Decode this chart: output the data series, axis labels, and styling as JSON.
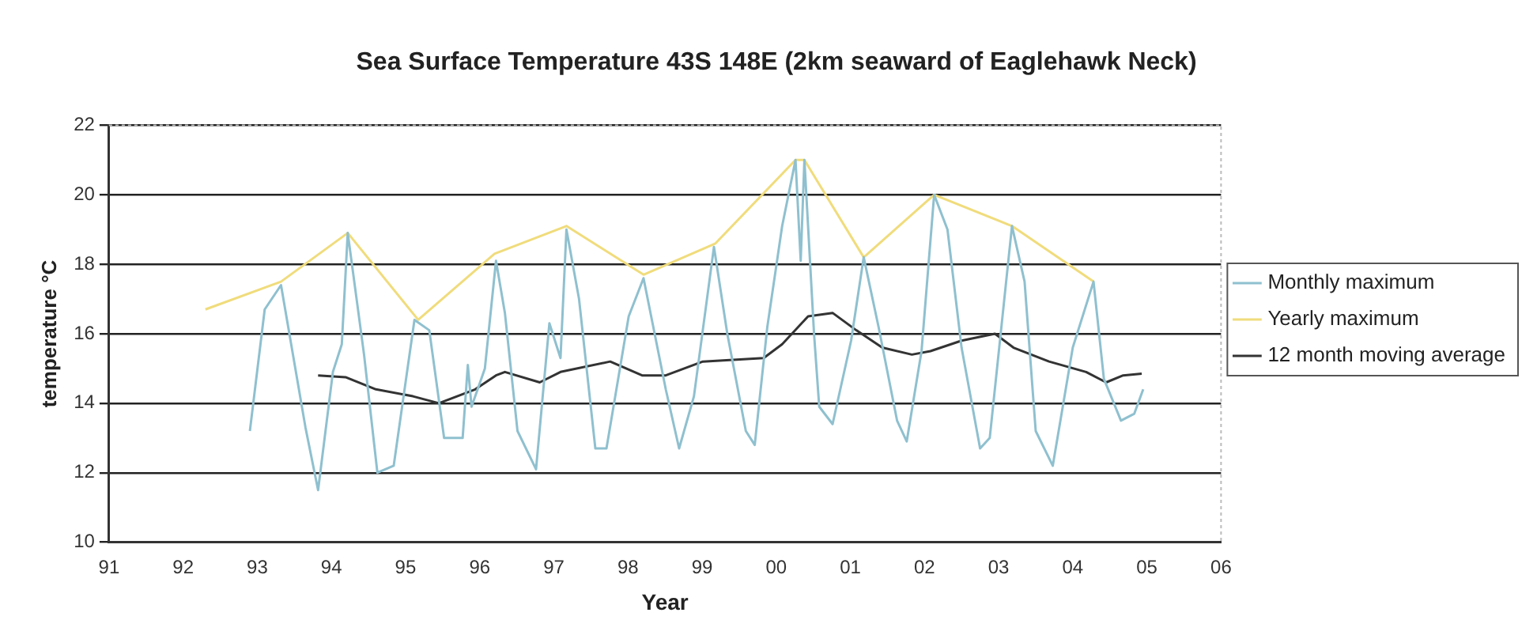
{
  "chart_data": {
    "type": "line",
    "title": "Sea Surface Temperature 43S 148E (2km seaward of Eaglehawk Neck)",
    "xlabel": "Year",
    "ylabel": "temperature °C",
    "xlim": [
      1991,
      2006
    ],
    "xticks": [
      {
        "value": 1991,
        "label": "91"
      },
      {
        "value": 1992,
        "label": "92"
      },
      {
        "value": 1993,
        "label": "93"
      },
      {
        "value": 1994,
        "label": "94"
      },
      {
        "value": 1995,
        "label": "95"
      },
      {
        "value": 1996,
        "label": "96"
      },
      {
        "value": 1997,
        "label": "97"
      },
      {
        "value": 1998,
        "label": "98"
      },
      {
        "value": 1999,
        "label": "99"
      },
      {
        "value": 2000,
        "label": "00"
      },
      {
        "value": 2001,
        "label": "01"
      },
      {
        "value": 2002,
        "label": "02"
      },
      {
        "value": 2003,
        "label": "03"
      },
      {
        "value": 2004,
        "label": "04"
      },
      {
        "value": 2005,
        "label": "05"
      },
      {
        "value": 2006,
        "label": "06"
      }
    ],
    "ylim": [
      10,
      22
    ],
    "yticks": [
      10,
      12,
      14,
      16,
      18,
      20,
      22
    ],
    "grid": "y",
    "legend": "right",
    "marker": "none",
    "series": [
      {
        "name": "Monthly maximum",
        "color": "#8fc0cf",
        "x": [
          1992.9,
          1993.1,
          1993.32,
          1993.65,
          1993.82,
          1994.02,
          1994.14,
          1994.22,
          1994.44,
          1994.62,
          1994.84,
          1994.94,
          1995.12,
          1995.32,
          1995.52,
          1995.77,
          1995.84,
          1995.89,
          1996.07,
          1996.22,
          1996.34,
          1996.51,
          1996.76,
          1996.94,
          1997.09,
          1997.17,
          1997.34,
          1997.56,
          1997.71,
          1998.01,
          1998.21,
          1998.51,
          1998.69,
          1998.89,
          1999.16,
          1999.34,
          1999.59,
          1999.71,
          1999.88,
          2000.08,
          2000.26,
          2000.33,
          2000.38,
          2000.51,
          2000.58,
          2000.76,
          2001.01,
          2001.18,
          2001.38,
          2001.63,
          2001.76,
          2001.96,
          2002.13,
          2002.31,
          2002.5,
          2002.75,
          2002.88,
          2003.18,
          2003.35,
          2003.5,
          2003.73,
          2004.0,
          2004.28,
          2004.42,
          2004.65,
          2004.83,
          2004.95
        ],
        "values": [
          13.2,
          16.7,
          17.4,
          13.3,
          11.5,
          14.9,
          15.7,
          18.9,
          15.4,
          12.0,
          12.2,
          13.7,
          16.4,
          16.1,
          13.0,
          13.0,
          15.1,
          13.9,
          15.0,
          18.1,
          16.6,
          13.2,
          12.1,
          16.3,
          15.3,
          19.0,
          17.0,
          12.7,
          12.7,
          16.5,
          17.6,
          14.4,
          12.7,
          14.2,
          18.5,
          16.0,
          13.2,
          12.8,
          16.2,
          19.1,
          21.0,
          18.1,
          21.0,
          16.0,
          13.9,
          13.4,
          15.8,
          18.2,
          16.2,
          13.5,
          12.9,
          15.5,
          20.0,
          19.0,
          15.6,
          12.7,
          13.0,
          19.1,
          17.5,
          13.2,
          12.2,
          15.6,
          17.5,
          14.7,
          13.5,
          13.7,
          14.4
        ]
      },
      {
        "name": "Yearly maximum",
        "color": "#f0dc7c",
        "x": [
          1992.3,
          1993.32,
          1994.22,
          1995.17,
          1996.2,
          1997.17,
          1998.21,
          1999.18,
          2000.26,
          2000.38,
          2001.18,
          2002.13,
          2003.18,
          2004.28
        ],
        "values": [
          16.7,
          17.5,
          18.9,
          16.4,
          18.3,
          19.1,
          17.7,
          18.6,
          21.0,
          21.0,
          18.2,
          20.0,
          19.1,
          17.5
        ]
      },
      {
        "name": "12 month moving average",
        "color": "#333333",
        "x": [
          1993.82,
          1994.19,
          1994.6,
          1995.1,
          1995.45,
          1995.94,
          1996.22,
          1996.34,
          1996.81,
          1997.09,
          1997.76,
          1998.19,
          1998.51,
          1999.01,
          1999.83,
          2000.08,
          2000.43,
          2000.76,
          2001.08,
          2001.43,
          2001.83,
          2002.08,
          2002.5,
          2002.95,
          2003.2,
          2003.68,
          2004.18,
          2004.45,
          2004.68,
          2004.93
        ],
        "values": [
          14.8,
          14.75,
          14.4,
          14.2,
          14.0,
          14.4,
          14.8,
          14.9,
          14.6,
          14.9,
          15.2,
          14.8,
          14.8,
          15.2,
          15.3,
          15.7,
          16.5,
          16.6,
          16.1,
          15.6,
          15.4,
          15.5,
          15.8,
          16.0,
          15.6,
          15.2,
          14.9,
          14.6,
          14.8,
          14.85
        ]
      }
    ]
  }
}
